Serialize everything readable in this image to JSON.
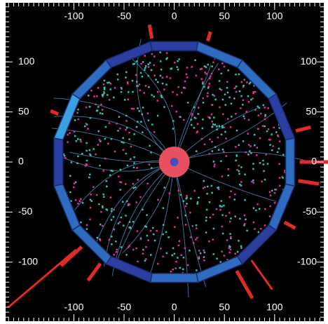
{
  "chart_data": {
    "type": "event-display",
    "xlim": [
      -168,
      149
    ],
    "ylim": [
      -159,
      159
    ],
    "xticks": [
      -100,
      -50,
      0,
      50,
      100
    ],
    "yticks": [
      -100,
      -50,
      0,
      50,
      100
    ]
  }
}
